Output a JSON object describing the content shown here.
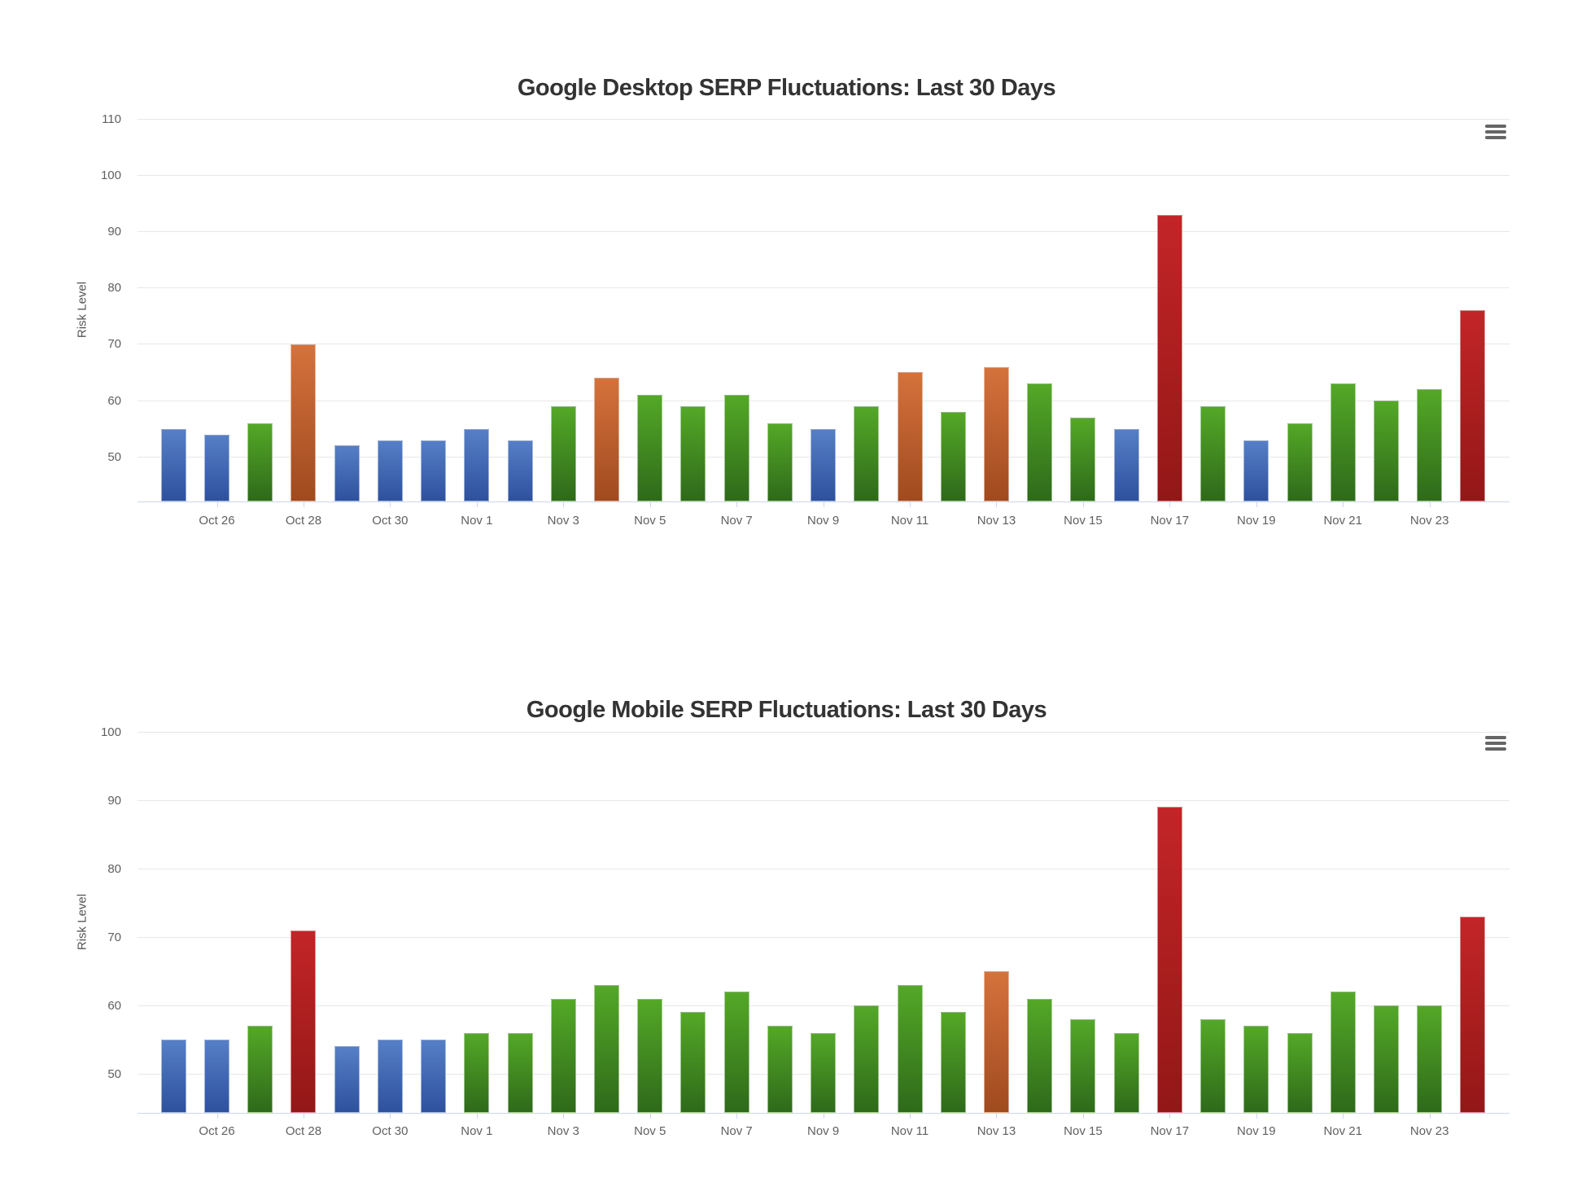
{
  "risk_colors": {
    "blue": {
      "top": "#557fc6",
      "bottom": "#2e519e"
    },
    "green": {
      "top": "#54a827",
      "bottom": "#2e6a1a"
    },
    "orange": {
      "top": "#d5723c",
      "bottom": "#a04a1f"
    },
    "red": {
      "top": "#c32527",
      "bottom": "#931717"
    }
  },
  "icons": {
    "menu": "hamburger-menu-icon"
  },
  "chart_data": [
    {
      "type": "bar",
      "title": "Google Desktop SERP Fluctuations: Last 30 Days",
      "xlabel": "",
      "ylabel": "Risk Level",
      "ylim": [
        42.1,
        110
      ],
      "y_ticks": [
        110,
        100,
        90,
        80,
        70,
        60,
        50
      ],
      "grid": "horizontal",
      "legend": "none",
      "categories": [
        "Oct 25",
        "Oct 26",
        "Oct 27",
        "Oct 28",
        "Oct 29",
        "Oct 30",
        "Oct 31",
        "Nov 1",
        "Nov 2",
        "Nov 3",
        "Nov 4",
        "Nov 5",
        "Nov 6",
        "Nov 7",
        "Nov 8",
        "Nov 9",
        "Nov 10",
        "Nov 11",
        "Nov 12",
        "Nov 13",
        "Nov 14",
        "Nov 15",
        "Nov 16",
        "Nov 17",
        "Nov 18",
        "Nov 19",
        "Nov 20",
        "Nov 21",
        "Nov 22",
        "Nov 23",
        "Nov 24"
      ],
      "values": [
        55,
        54,
        56,
        70,
        52,
        53,
        53,
        55,
        53,
        59,
        64,
        61,
        59,
        61,
        56,
        55,
        59,
        65,
        58,
        66,
        63,
        57,
        55,
        93,
        59,
        53,
        56,
        63,
        60,
        62,
        76
      ],
      "point_risk_colors": [
        "blue",
        "blue",
        "green",
        "orange",
        "blue",
        "blue",
        "blue",
        "blue",
        "blue",
        "green",
        "orange",
        "green",
        "green",
        "green",
        "green",
        "blue",
        "green",
        "orange",
        "green",
        "orange",
        "green",
        "green",
        "blue",
        "red",
        "green",
        "blue",
        "green",
        "green",
        "green",
        "green",
        "red"
      ],
      "x_tick_labels": [
        "Oct 26",
        "Oct 28",
        "Oct 30",
        "Nov 1",
        "Nov 3",
        "Nov 5",
        "Nov 7",
        "Nov 9",
        "Nov 11",
        "Nov 13",
        "Nov 15",
        "Nov 17",
        "Nov 19",
        "Nov 21",
        "Nov 23"
      ]
    },
    {
      "type": "bar",
      "title": "Google Mobile SERP Fluctuations: Last 30 Days",
      "xlabel": "",
      "ylabel": "Risk Level",
      "ylim": [
        44.3,
        100
      ],
      "y_ticks": [
        100,
        90,
        80,
        70,
        60,
        50
      ],
      "grid": "horizontal",
      "legend": "none",
      "categories": [
        "Oct 25",
        "Oct 26",
        "Oct 27",
        "Oct 28",
        "Oct 29",
        "Oct 30",
        "Oct 31",
        "Nov 1",
        "Nov 2",
        "Nov 3",
        "Nov 4",
        "Nov 5",
        "Nov 6",
        "Nov 7",
        "Nov 8",
        "Nov 9",
        "Nov 10",
        "Nov 11",
        "Nov 12",
        "Nov 13",
        "Nov 14",
        "Nov 15",
        "Nov 16",
        "Nov 17",
        "Nov 18",
        "Nov 19",
        "Nov 20",
        "Nov 21",
        "Nov 22",
        "Nov 23",
        "Nov 24"
      ],
      "values": [
        55,
        55,
        57,
        71,
        54,
        55,
        55,
        56,
        56,
        61,
        63,
        61,
        59,
        62,
        57,
        56,
        60,
        63,
        59,
        65,
        61,
        58,
        56,
        89,
        58,
        57,
        56,
        62,
        60,
        60,
        73
      ],
      "point_risk_colors": [
        "blue",
        "blue",
        "green",
        "red",
        "blue",
        "blue",
        "blue",
        "green",
        "green",
        "green",
        "green",
        "green",
        "green",
        "green",
        "green",
        "green",
        "green",
        "green",
        "green",
        "orange",
        "green",
        "green",
        "green",
        "red",
        "green",
        "green",
        "green",
        "green",
        "green",
        "green",
        "red"
      ],
      "x_tick_labels": [
        "Oct 26",
        "Oct 28",
        "Oct 30",
        "Nov 1",
        "Nov 3",
        "Nov 5",
        "Nov 7",
        "Nov 9",
        "Nov 11",
        "Nov 13",
        "Nov 15",
        "Nov 17",
        "Nov 19",
        "Nov 21",
        "Nov 23"
      ]
    }
  ]
}
